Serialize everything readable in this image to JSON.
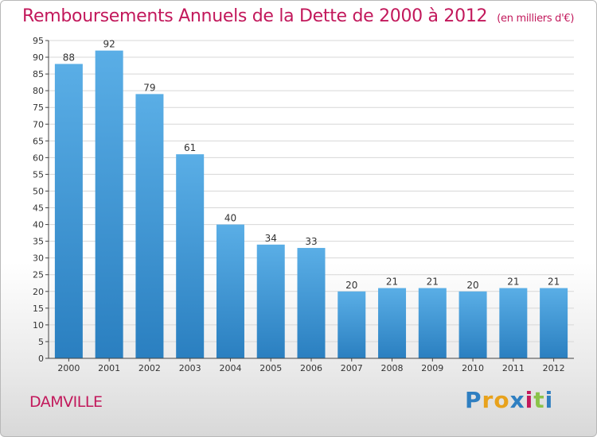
{
  "header": {
    "title": "Remboursements Annuels de la Dette de 2000 à 2012",
    "unit": "(en milliers d'€)"
  },
  "footer": {
    "commune": "DAMVILLE",
    "brand_letters": [
      "P",
      "r",
      "o",
      "x",
      "i",
      "t",
      "i"
    ]
  },
  "colors": {
    "title": "#c2185b",
    "bar_light": "#5aaee6",
    "bar_dark": "#2a7fc0",
    "grid": "#d7d7d7",
    "brand": [
      "#2f7fc1",
      "#e8a21c",
      "#e8a21c",
      "#2f7fc1",
      "#c2185b",
      "#8bc34a",
      "#2f7fc1"
    ]
  },
  "chart_data": {
    "type": "bar",
    "title": "Remboursements Annuels de la Dette de 2000 à 2012",
    "ylabel": "en milliers d'€",
    "xlabel": "",
    "categories": [
      "2000",
      "2001",
      "2002",
      "2003",
      "2004",
      "2005",
      "2006",
      "2007",
      "2008",
      "2009",
      "2010",
      "2011",
      "2012"
    ],
    "values": [
      88,
      92,
      79,
      61,
      40,
      34,
      33,
      20,
      21,
      21,
      20,
      21,
      21
    ],
    "ylim": [
      0,
      95
    ],
    "yticks": [
      0,
      5,
      10,
      15,
      20,
      25,
      30,
      35,
      40,
      45,
      50,
      55,
      60,
      65,
      70,
      75,
      80,
      85,
      90,
      95
    ],
    "grid": true
  }
}
